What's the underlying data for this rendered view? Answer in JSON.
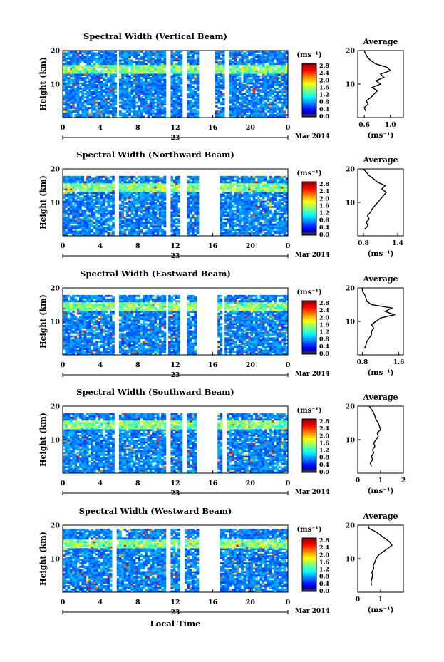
{
  "figure": {
    "xlabel": "Local Time",
    "date_label": "Mar 2014",
    "day_label": "23",
    "x_ticks": [
      "0",
      "4",
      "8",
      "12",
      "16",
      "20",
      "0"
    ],
    "y_ticks": [
      "20",
      "10"
    ],
    "ylabel": "Height (km)",
    "avg_title": "Average",
    "avg_xlabel": "(ms⁻¹)",
    "cbar_unit": "(ms⁻¹)",
    "cbar_ticks": [
      "2.8",
      "2.4",
      "2.0",
      "1.6",
      "1.2",
      "0.8",
      "0.4",
      "0.0"
    ]
  },
  "chart_data": [
    {
      "type": "heatmap",
      "title": "Spectral Width (Vertical Beam)",
      "xlabel": "Local Time",
      "ylabel": "Height (km)",
      "x_range": [
        0,
        24
      ],
      "y_range": [
        0,
        20
      ],
      "colorbar": {
        "label": "(ms⁻¹)",
        "range": [
          0.0,
          2.8
        ]
      },
      "gaps_hours": [
        [
          5.8,
          6.1
        ],
        [
          11.0,
          11.5
        ],
        [
          12.8,
          13.3
        ],
        [
          14.6,
          16.3
        ],
        [
          17.2,
          17.7
        ]
      ],
      "top_km": 20,
      "average": {
        "type": "line",
        "title": "Average",
        "xlabel": "(ms⁻¹)",
        "x_ticks": [
          "0.6",
          "1.0"
        ],
        "xlim": [
          0.5,
          1.2
        ],
        "heights": [
          2,
          3,
          4,
          5,
          6,
          7,
          8,
          9,
          10,
          11,
          12,
          13,
          14,
          15,
          16,
          17,
          18,
          19,
          20
        ],
        "values": [
          0.62,
          0.6,
          0.66,
          0.63,
          0.7,
          0.75,
          0.8,
          0.72,
          0.85,
          0.78,
          0.9,
          0.85,
          1.0,
          0.95,
          0.78,
          0.7,
          0.65,
          0.62,
          0.6
        ]
      }
    },
    {
      "type": "heatmap",
      "title": "Spectral Width (Northward Beam)",
      "xlabel": "Local Time",
      "ylabel": "Height (km)",
      "x_range": [
        0,
        24
      ],
      "y_range": [
        0,
        20
      ],
      "colorbar": {
        "label": "(ms⁻¹)",
        "range": [
          0.0,
          2.8
        ]
      },
      "gaps_hours": [
        [
          5.5,
          6.1
        ],
        [
          11.0,
          11.5
        ],
        [
          12.6,
          13.2
        ],
        [
          14.5,
          16.8
        ]
      ],
      "top_km": 18,
      "average": {
        "type": "line",
        "title": "Average",
        "xlabel": "(ms⁻¹)",
        "x_ticks": [
          "0.8",
          "1.4"
        ],
        "xlim": [
          0.7,
          1.5
        ],
        "heights": [
          2,
          3,
          4,
          5,
          6,
          7,
          8,
          9,
          10,
          11,
          12,
          13,
          14,
          15,
          16,
          17,
          18,
          19,
          20
        ],
        "values": [
          0.82,
          0.88,
          0.85,
          0.9,
          0.87,
          0.92,
          0.95,
          1.0,
          1.05,
          1.1,
          1.15,
          1.2,
          1.12,
          1.18,
          1.05,
          0.98,
          0.9,
          0.85,
          0.8
        ]
      }
    },
    {
      "type": "heatmap",
      "title": "Spectral Width (Eastward Beam)",
      "xlabel": "Local Time",
      "ylabel": "Height (km)",
      "x_range": [
        0,
        24
      ],
      "y_range": [
        0,
        20
      ],
      "colorbar": {
        "label": "(ms⁻¹)",
        "range": [
          0.0,
          2.8
        ]
      },
      "gaps_hours": [
        [
          5.6,
          6.0
        ],
        [
          11.0,
          11.2
        ],
        [
          12.5,
          13.2
        ],
        [
          14.3,
          16.5
        ],
        [
          17.0,
          17.3
        ]
      ],
      "top_km": 18,
      "average": {
        "type": "line",
        "title": "Average",
        "xlabel": "(ms⁻¹)",
        "x_ticks": [
          "0.8",
          "1.6"
        ],
        "xlim": [
          0.7,
          1.7
        ],
        "heights": [
          2,
          3,
          4,
          5,
          6,
          7,
          8,
          9,
          10,
          11,
          12,
          13,
          14,
          15,
          16,
          17,
          18,
          19,
          20
        ],
        "values": [
          0.85,
          0.88,
          0.9,
          0.95,
          1.0,
          1.0,
          1.05,
          1.0,
          1.1,
          1.2,
          1.5,
          1.3,
          1.45,
          1.0,
          0.9,
          0.88,
          0.85,
          0.8,
          0.8
        ]
      }
    },
    {
      "type": "heatmap",
      "title": "Spectral Width (Southward Beam)",
      "xlabel": "Local Time",
      "ylabel": "Height (km)",
      "x_range": [
        0,
        24
      ],
      "y_range": [
        0,
        20
      ],
      "colorbar": {
        "label": "(ms⁻¹)",
        "range": [
          0.0,
          2.8
        ]
      },
      "gaps_hours": [
        [
          5.6,
          6.0
        ],
        [
          11.0,
          11.4
        ],
        [
          12.8,
          13.3
        ],
        [
          14.3,
          16.5
        ],
        [
          17.0,
          17.4
        ]
      ],
      "top_km": 18,
      "average": {
        "type": "line",
        "title": "Average",
        "xlabel": "(ms⁻¹)",
        "x_ticks": [
          "0",
          "1",
          "2"
        ],
        "xlim": [
          0,
          2
        ],
        "heights": [
          2,
          3,
          4,
          5,
          6,
          7,
          8,
          9,
          10,
          11,
          12,
          13,
          14,
          15,
          16,
          17,
          18,
          19,
          20
        ],
        "values": [
          0.6,
          0.55,
          0.65,
          0.6,
          0.7,
          0.65,
          0.75,
          0.7,
          0.8,
          0.9,
          0.85,
          1.0,
          0.95,
          0.9,
          0.8,
          0.75,
          0.7,
          0.6,
          0.5
        ]
      }
    },
    {
      "type": "heatmap",
      "title": "Spectral Width (Westward Beam)",
      "xlabel": "Local Time",
      "ylabel": "Height (km)",
      "x_range": [
        0,
        24
      ],
      "y_range": [
        0,
        20
      ],
      "colorbar": {
        "label": "(ms⁻¹)",
        "range": [
          0.0,
          2.8
        ]
      },
      "gaps_hours": [
        [
          5.3,
          5.7
        ],
        [
          11.0,
          11.4
        ],
        [
          12.6,
          13.0
        ],
        [
          14.5,
          16.8
        ]
      ],
      "top_km": 19,
      "average": {
        "type": "line",
        "title": "Average",
        "xlabel": "(ms⁻¹)",
        "x_ticks": [
          "0",
          "1"
        ],
        "xlim": [
          0,
          2
        ],
        "heights": [
          2,
          3,
          4,
          5,
          6,
          7,
          8,
          9,
          10,
          11,
          12,
          13,
          14,
          15,
          16,
          17,
          18,
          19,
          20
        ],
        "values": [
          0.6,
          0.58,
          0.62,
          0.65,
          0.62,
          0.7,
          0.68,
          0.75,
          0.8,
          0.9,
          1.1,
          1.3,
          1.5,
          1.4,
          1.2,
          1.0,
          0.8,
          0.5,
          0.45
        ]
      }
    }
  ]
}
